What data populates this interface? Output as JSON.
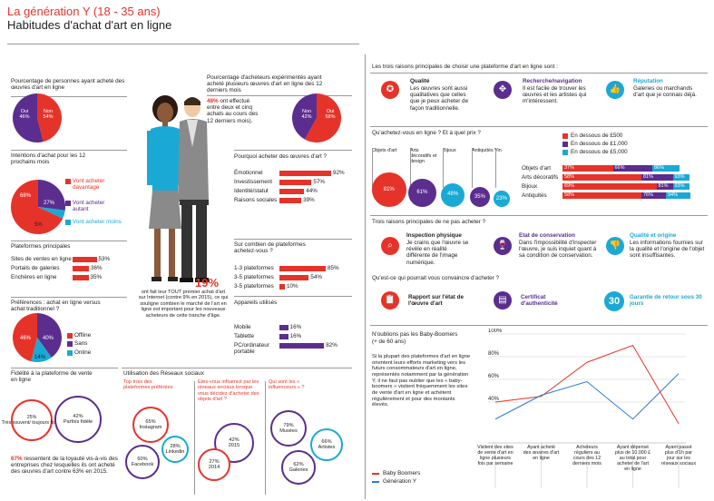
{
  "header": {
    "title": "La génération Y (18 - 35 ans)",
    "subtitle": "Habitudes d'achat d'art en ligne"
  },
  "colors": {
    "red": "#e63329",
    "purple": "#5b2d8e",
    "cyan": "#1aa9d4",
    "blue": "#2b7bd6"
  },
  "pct_buyers": {
    "title": "Pourcentage de personnes ayant acheté des œuvres d'art en ligne",
    "oui": "Oui\n46%",
    "non": "Non\n54%"
  },
  "pct_experienced": {
    "title": "Pourcentage d'acheteurs expérimentés ayant acheté plusieurs œuvres d'art en ligne des 12 derniers mois",
    "text_red": "48%",
    "text_rest": " ont effectué entre deux et cinq achats au cours des 12 derniers mois).",
    "non": "Non\n42%",
    "oui": "Oui\n58%"
  },
  "intentions": {
    "title": "Intentions d'achat pour les 12 prochains mois",
    "p1": "68%",
    "p2": "27%",
    "p3": "5%",
    "l1": "Vont acheter davantage",
    "l2": "Vont acheter autant",
    "l3": "Vont acheter moins"
  },
  "platforms": {
    "title": "Plateformes principales",
    "rows": [
      {
        "label": "Sites de ventes en ligne",
        "value": "53%",
        "v": 53
      },
      {
        "label": "Portails de galeries",
        "value": "36%",
        "v": 36
      },
      {
        "label": "Enchères en ligne",
        "value": "35%",
        "v": 35
      }
    ]
  },
  "preferences": {
    "title": "Préférences : achat en ligne versus achat traditionnel ?",
    "p1": "46%",
    "p2": "40%",
    "p3": "14%",
    "l1": "Offline",
    "l2": "Sans",
    "l3": "Online"
  },
  "fidelity": {
    "title": "Fidélité à la plateforme de vente en ligne",
    "c1": "25%\nTrès souvent/ toujours fidèle",
    "c2": "42%\nParfois fidèle",
    "text_red": "67%",
    "text_rest": " ressentent de la loyauté vis-à-vis des entreprises chez lesquelles ils ont acheté des œuvres d'art contre 63% en 2015."
  },
  "why_buy": {
    "title": "Pourquoi acheter des œuvres d'art ?",
    "rows": [
      {
        "label": "Émotionnel",
        "value": "92%",
        "v": 92
      },
      {
        "label": "Investissement",
        "value": "57%",
        "v": 57
      },
      {
        "label": "Identité/statut",
        "value": "44%",
        "v": 44
      },
      {
        "label": "Raisons sociales",
        "value": "39%",
        "v": 39
      }
    ]
  },
  "how_many": {
    "title": "Sur combien de plateformes achetez-vous ?",
    "rows": [
      {
        "label": "1-3 plateformes",
        "value": "85%",
        "v": 85
      },
      {
        "label": "3-5 plateformes",
        "value": "54%",
        "v": 54
      },
      {
        "label": "3-5 plateformes",
        "value": "10%",
        "v": 10
      }
    ]
  },
  "devices": {
    "title": "Appareils utilisés",
    "rows": [
      {
        "label": "Mobile",
        "value": "16%",
        "v": 16
      },
      {
        "label": "Tablette",
        "value": "16%",
        "v": 16
      },
      {
        "label": "PC/ordinateur portable",
        "value": "82%",
        "v": 82
      }
    ]
  },
  "callout": {
    "big": "19%",
    "text": "ont fait leur TOUT premier achat d'art sur Internet (contre 9% en 2015), ce qui souligne combien le marché de l'art en ligne est important pour les nouveaux acheteurs de cette tranche d'âge."
  },
  "social": {
    "title": "Utilisation des Réseaux sociaux",
    "col1": "Top trois des plateformes préférées",
    "col2": "Etes-vous influencé par les réseaux sociaux lorsque vous décidez d'acheter des objets d'art ?",
    "col3": "Qui sont les « influenceurs » ?",
    "instagram": "65%\nInstagram",
    "linkedin": "28%\nLinkedin",
    "facebook": "60%\nFacebook",
    "y2015": "42%\n2015",
    "y2014": "27%\n2014",
    "musees": "79%\nMusées",
    "artistes": "66%\nArtistes",
    "galeries": "62%\nGaleries"
  },
  "three_reasons": {
    "title": "Les trois raisons principales de choisir une plateforme d'art en ligne sont :",
    "items": [
      {
        "title": "Qualité",
        "text": "Les œuvres sont aussi qualitatives que celles que je peux acheter de façon traditionnelle.",
        "icon": "medal-icon"
      },
      {
        "title": "Recherche/navigation",
        "text": "Il est facile de trouver les œuvres et les artistes qui m'intéressent.",
        "icon": "compass-icon"
      },
      {
        "title": "Réputation",
        "text": "Galeries ou marchands d'art que je connais déjà.",
        "icon": "thumbs-up-icon"
      }
    ]
  },
  "what_buy": {
    "title": "Qu'achetez-vous en ligne ? Et à quel prix ?",
    "legend": [
      "En dessous de £500",
      "En dessous de £1,000",
      "En dessous de £5,000"
    ],
    "bubbles": [
      {
        "label": "Objets d'art",
        "value": "81%"
      },
      {
        "label": "Arts décoratifs et design",
        "value": "61%"
      },
      {
        "label": "Bijoux",
        "value": "48%"
      },
      {
        "label": "Antiquités",
        "value": "35%"
      },
      {
        "label": "Vin",
        "value": "23%"
      }
    ],
    "rows": [
      {
        "label": "Objets d'art",
        "a": "37%",
        "b": "66%",
        "c": "86%",
        "av": 37,
        "bv": 66,
        "cv": 86
      },
      {
        "label": "Arts décoratifs",
        "a": "58%",
        "b": "81%",
        "c": "93%",
        "av": 58,
        "bv": 81,
        "cv": 93
      },
      {
        "label": "Bijoux",
        "a": "69%",
        "b": "81%",
        "c": "93%",
        "av": 69,
        "bv": 81,
        "cv": 93
      },
      {
        "label": "Antiquités",
        "a": "58%",
        "b": "76%",
        "c": "94%",
        "av": 58,
        "bv": 76,
        "cv": 94
      }
    ]
  },
  "not_buy": {
    "title": "Trois raisons principales de ne pas acheter ?",
    "items": [
      {
        "title": "Inspection physique",
        "text": "Je crains que l'œuvre se révèle en réalité différente de l'image numérique.",
        "icon": "magnifier-icon"
      },
      {
        "title": "Etat de conservation",
        "text": "Dans l'impossibilité d'inspecter l'œuvre, je suis inquiet quant à sa condition de conservation.",
        "icon": "wine-glass-icon"
      },
      {
        "title": "Qualité et origine",
        "text": "Les informations fournies sur la qualité et l'origine de l'objet sont insuffisantes.",
        "icon": "thumbs-down-icon"
      }
    ]
  },
  "convince": {
    "title": "Qu'est-ce qui pourrait vous convaincre d'acheter ?",
    "items": [
      {
        "text": "Rapport sur l'état de l'œuvre d'art",
        "icon": "clipboard-icon"
      },
      {
        "text": "Certificat d'authenticité",
        "icon": "certificate-icon"
      },
      {
        "text": "Garantie de retour sous 30 jours",
        "icon": "30"
      }
    ]
  },
  "boomers": {
    "title": "N'oublions pas les Baby-Boomers",
    "subtitle": "(+ de 60 ans)",
    "text": "Si la plupart des plateformes d'art en ligne orientent leurs efforts marketing vers les futurs consommateurs d'art en ligne, représentés notamment par la génération Y, il ne faut pas oublier que les « baby-boomers » visitent fréquemment les sites de vente d'art en ligne et achètent régulièrement et pour des montants élevés.",
    "legend_boomers": "Baby Boomers",
    "legend_geny": "Génération Y"
  },
  "chart_data": {
    "type": "line",
    "categories": [
      "Visitent des sites de vente d'art en ligne plusieurs fois par semaine",
      "Ayant acheté des œuvres d'art en ligne",
      "Acheteurs réguliers au cours des 12 derniers mois",
      "Ayant dépensé plus de 10,000 £ au total pour acheter de l'art en ligne",
      "Ayant passé plus d'1h par jour sur les réseaux sociaux"
    ],
    "series": [
      {
        "name": "Baby Boomers",
        "values": [
          40,
          45,
          75,
          90,
          21
        ]
      },
      {
        "name": "Génération Y",
        "values": [
          25,
          46,
          58,
          25,
          65
        ]
      }
    ],
    "yticks": [
      "100%",
      "80%",
      "60%",
      "40%"
    ],
    "ylim": [
      20,
      100
    ]
  }
}
